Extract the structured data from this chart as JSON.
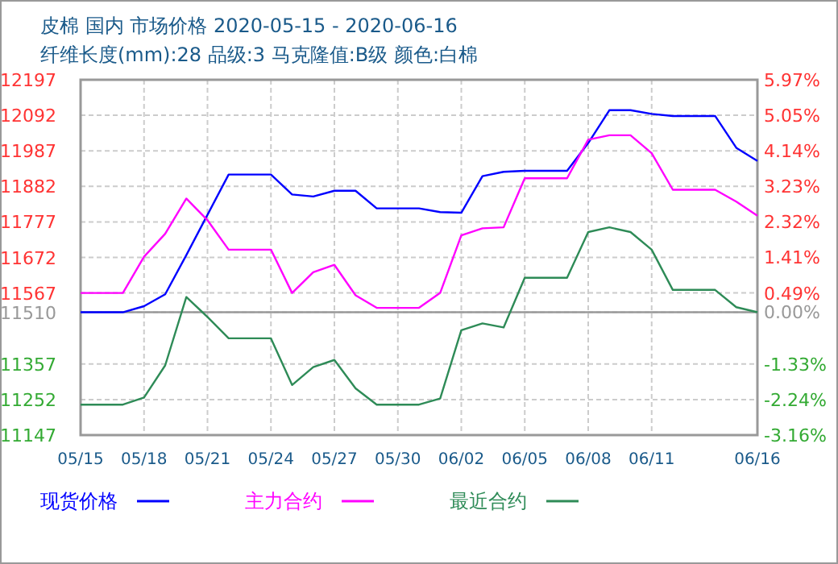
{
  "chart_data": {
    "type": "line",
    "title": "皮棉 国内 市场价格 2020-05-15 - 2020-06-16",
    "subtitle": "纤维长度(mm):28 品级:3 马克隆值:B级 颜色:白棉",
    "x": [
      "2020-05-15",
      "2020-05-16",
      "2020-05-17",
      "2020-05-18",
      "2020-05-19",
      "2020-05-20",
      "2020-05-21",
      "2020-05-22",
      "2020-05-23",
      "2020-05-24",
      "2020-05-25",
      "2020-05-26",
      "2020-05-27",
      "2020-05-28",
      "2020-05-29",
      "2020-05-30",
      "2020-05-31",
      "2020-06-01",
      "2020-06-02",
      "2020-06-03",
      "2020-06-04",
      "2020-06-05",
      "2020-06-06",
      "2020-06-07",
      "2020-06-08",
      "2020-06-09",
      "2020-06-10",
      "2020-06-11",
      "2020-06-12",
      "2020-06-13",
      "2020-06-14",
      "2020-06-15",
      "2020-06-16"
    ],
    "series": [
      {
        "name": "现货价格",
        "color": "#0000ff",
        "values": [
          11510,
          11510,
          11510,
          11528,
          11563,
          11679,
          11798,
          11917,
          11917,
          11917,
          11858,
          11852,
          11869,
          11869,
          11817,
          11817,
          11817,
          11806,
          11804,
          11912,
          11925,
          11928,
          11928,
          11928,
          12010,
          12107,
          12107,
          12096,
          12090,
          12090,
          12090,
          11996,
          11957
        ]
      },
      {
        "name": "主力合约",
        "color": "#ff00ff",
        "values": [
          11567,
          11567,
          11567,
          11674,
          11742,
          11846,
          11782,
          11695,
          11695,
          11695,
          11567,
          11628,
          11650,
          11560,
          11523,
          11523,
          11523,
          11567,
          11737,
          11758,
          11761,
          11906,
          11906,
          11906,
          12020,
          12033,
          12033,
          11980,
          11872,
          11872,
          11872,
          11837,
          11795
        ]
      },
      {
        "name": "最近合约",
        "color": "#2e8b57",
        "values": [
          11237,
          11237,
          11237,
          11258,
          11353,
          11555,
          11496,
          11433,
          11433,
          11433,
          11295,
          11348,
          11369,
          11285,
          11237,
          11237,
          11237,
          11255,
          11457,
          11477,
          11465,
          11612,
          11612,
          11612,
          11747,
          11761,
          11747,
          11695,
          11576,
          11576,
          11576,
          11525,
          11510
        ]
      }
    ],
    "xlim": [
      "2020-05-15",
      "2020-06-16"
    ],
    "xticks": [
      {
        "value": "2020-05-15",
        "label": "05/15"
      },
      {
        "value": "2020-05-18",
        "label": "05/18"
      },
      {
        "value": "2020-05-21",
        "label": "05/21"
      },
      {
        "value": "2020-05-24",
        "label": "05/24"
      },
      {
        "value": "2020-05-27",
        "label": "05/27"
      },
      {
        "value": "2020-05-30",
        "label": "05/30"
      },
      {
        "value": "2020-06-02",
        "label": "06/02"
      },
      {
        "value": "2020-06-05",
        "label": "06/05"
      },
      {
        "value": "2020-06-08",
        "label": "06/08"
      },
      {
        "value": "2020-06-11",
        "label": "06/11"
      },
      {
        "value": "2020-06-16",
        "label": "06/16"
      }
    ],
    "ylim": [
      11147,
      12197
    ],
    "yticks": [
      11147,
      11252,
      11357,
      11510,
      11567,
      11672,
      11777,
      11882,
      11987,
      12092,
      12197
    ],
    "y2lim": [
      -3.16,
      5.97
    ],
    "y2ticks": [
      {
        "value": -3.16,
        "label": "-3.16%"
      },
      {
        "value": -2.24,
        "label": "-2.24%"
      },
      {
        "value": -1.33,
        "label": "-1.33%"
      },
      {
        "value": 0,
        "label": "0.00%"
      },
      {
        "value": 0.49,
        "label": "0.49%"
      },
      {
        "value": 1.41,
        "label": "1.41%"
      },
      {
        "value": 2.32,
        "label": "2.32%"
      },
      {
        "value": 3.23,
        "label": "3.23%"
      },
      {
        "value": 4.14,
        "label": "4.14%"
      },
      {
        "value": 5.05,
        "label": "5.05%"
      },
      {
        "value": 5.97,
        "label": "5.97%"
      }
    ],
    "ref_lines": [
      {
        "axis": "y",
        "value": 11510,
        "color": "#999999"
      }
    ],
    "grid": true,
    "legend": "bottom",
    "line_style": "solid",
    "marker": "none"
  }
}
